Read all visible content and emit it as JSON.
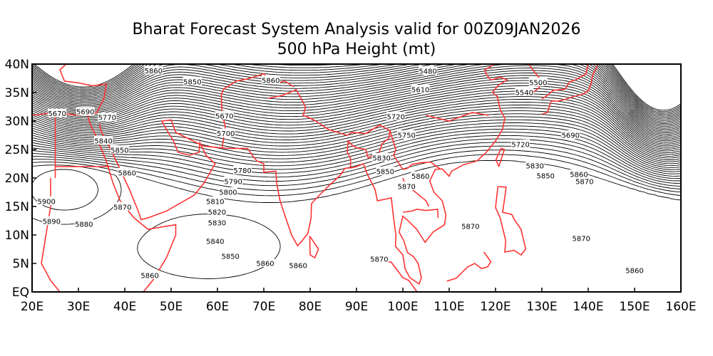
{
  "title_line1": "Bharat Forecast System Analysis valid for 00Z09JAN2026",
  "title_line2": "500 hPa Height (mt)",
  "colors": {
    "contour": "#000000",
    "coastline": "#ff3333",
    "background": "#ffffff"
  },
  "map": {
    "lon_range": [
      20,
      160
    ],
    "lat_range": [
      0,
      40
    ],
    "contour_interval": 10,
    "x_ticks": [
      "20E",
      "30E",
      "40E",
      "50E",
      "60E",
      "70E",
      "80E",
      "90E",
      "100E",
      "110E",
      "120E",
      "130E",
      "140E",
      "150E",
      "160E"
    ],
    "y_ticks": [
      "EQ",
      "5N",
      "10N",
      "15N",
      "20N",
      "25N",
      "30N",
      "35N",
      "40N"
    ],
    "contour_labels": [
      {
        "text": "5860",
        "lon": 46.2,
        "lat": 38.8
      },
      {
        "text": "5850",
        "lon": 54.6,
        "lat": 36.9
      },
      {
        "text": "5860",
        "lon": 71.5,
        "lat": 37.1
      },
      {
        "text": "5670",
        "lon": 25.4,
        "lat": 31.3
      },
      {
        "text": "5690",
        "lon": 31.5,
        "lat": 31.6
      },
      {
        "text": "5770",
        "lon": 36.2,
        "lat": 30.6
      },
      {
        "text": "5840",
        "lon": 35.4,
        "lat": 26.5
      },
      {
        "text": "5850",
        "lon": 38.9,
        "lat": 24.9
      },
      {
        "text": "5860",
        "lon": 40.5,
        "lat": 20.9
      },
      {
        "text": "5900",
        "lon": 23.1,
        "lat": 15.9
      },
      {
        "text": "5890",
        "lon": 24.2,
        "lat": 12.4
      },
      {
        "text": "5870",
        "lon": 39.5,
        "lat": 14.9
      },
      {
        "text": "5880",
        "lon": 31.2,
        "lat": 11.9
      },
      {
        "text": "5860",
        "lon": 45.4,
        "lat": 2.9
      },
      {
        "text": "5670",
        "lon": 61.5,
        "lat": 30.9
      },
      {
        "text": "5700",
        "lon": 61.8,
        "lat": 27.8
      },
      {
        "text": "5780",
        "lon": 65.4,
        "lat": 21.3
      },
      {
        "text": "5790",
        "lon": 63.4,
        "lat": 19.4
      },
      {
        "text": "5800",
        "lon": 62.3,
        "lat": 17.5
      },
      {
        "text": "5810",
        "lon": 59.5,
        "lat": 15.9
      },
      {
        "text": "5820",
        "lon": 59.9,
        "lat": 14.0
      },
      {
        "text": "5830",
        "lon": 59.9,
        "lat": 12.1
      },
      {
        "text": "5840",
        "lon": 59.5,
        "lat": 8.9
      },
      {
        "text": "5850",
        "lon": 62.8,
        "lat": 6.25
      },
      {
        "text": "5860",
        "lon": 70.3,
        "lat": 5.0
      },
      {
        "text": "5860",
        "lon": 77.4,
        "lat": 4.6
      },
      {
        "text": "5870",
        "lon": 94.9,
        "lat": 5.75
      },
      {
        "text": "5870",
        "lon": 114.6,
        "lat": 11.5
      },
      {
        "text": "5870",
        "lon": 138.5,
        "lat": 9.4
      },
      {
        "text": "5860",
        "lon": 150.0,
        "lat": 3.75
      },
      {
        "text": "5850",
        "lon": 96.2,
        "lat": 21.1
      },
      {
        "text": "5860",
        "lon": 103.8,
        "lat": 20.3
      },
      {
        "text": "5870",
        "lon": 100.8,
        "lat": 18.5
      },
      {
        "text": "5500",
        "lon": 129.2,
        "lat": 36.75
      },
      {
        "text": "5540",
        "lon": 126.2,
        "lat": 35.0
      },
      {
        "text": "5720",
        "lon": 125.4,
        "lat": 25.9
      },
      {
        "text": "5830",
        "lon": 128.5,
        "lat": 22.1
      },
      {
        "text": "5850",
        "lon": 130.8,
        "lat": 20.4
      },
      {
        "text": "5870",
        "lon": 139.2,
        "lat": 19.4
      },
      {
        "text": "5860",
        "lon": 138.0,
        "lat": 20.6
      },
      {
        "text": "5610",
        "lon": 103.8,
        "lat": 35.5
      },
      {
        "text": "5720",
        "lon": 98.5,
        "lat": 30.75
      },
      {
        "text": "5750",
        "lon": 100.8,
        "lat": 27.5
      },
      {
        "text": "5830",
        "lon": 95.4,
        "lat": 23.5
      },
      {
        "text": "5480",
        "lon": 105.4,
        "lat": 38.75
      },
      {
        "text": "5690",
        "lon": 136.2,
        "lat": 27.5
      }
    ]
  }
}
